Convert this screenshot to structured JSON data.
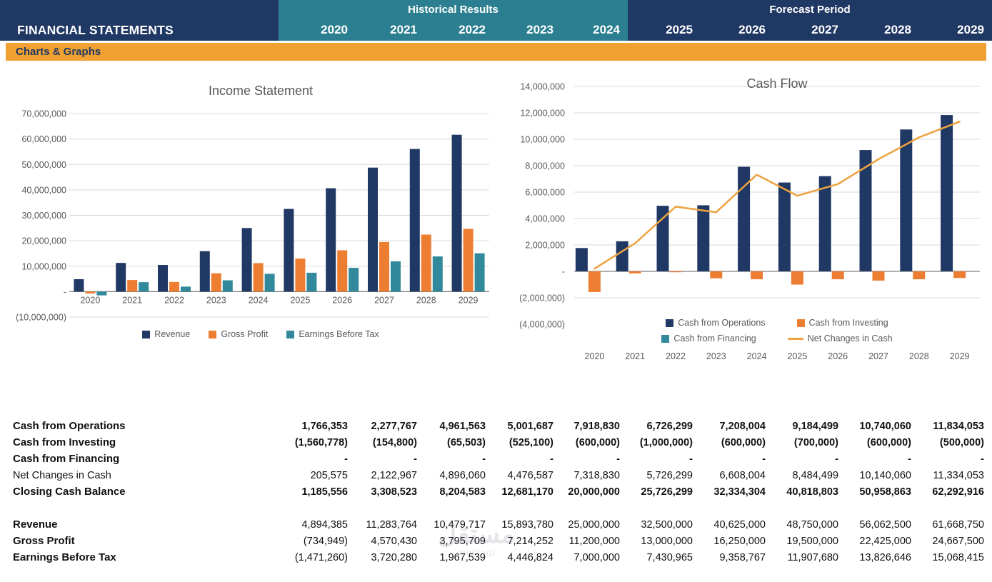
{
  "header": {
    "title": "FINANCIAL STATEMENTS",
    "historical_label": "Historical Results",
    "forecast_label": "Forecast Period",
    "historical_years": [
      "2020",
      "2021",
      "2022",
      "2023",
      "2024"
    ],
    "forecast_years": [
      "2025",
      "2026",
      "2027",
      "2028",
      "2029"
    ]
  },
  "section_bar": {
    "label": "Charts & Graphs"
  },
  "colors": {
    "navy": "#203864",
    "teal": "#2C7F90",
    "chart_teal": "#31899B",
    "orange": "#ED7D31",
    "band_orange": "#F0A132",
    "line_orange": "#EDA23F",
    "title_gray": "#595959",
    "grid_gray": "#D9D9D9",
    "axis_gray": "#808080"
  },
  "chart_data": [
    {
      "type": "bar",
      "title": "Income Statement",
      "categories": [
        "2020",
        "2021",
        "2022",
        "2023",
        "2024",
        "2025",
        "2026",
        "2027",
        "2028",
        "2029"
      ],
      "series": [
        {
          "name": "Revenue",
          "type": "bar",
          "color": "#203864",
          "values": [
            4894385,
            11283764,
            10479717,
            15893780,
            25000000,
            32500000,
            40625000,
            48750000,
            56062500,
            61668750
          ]
        },
        {
          "name": "Gross Profit",
          "type": "bar",
          "color": "#ED7D31",
          "values": [
            -734949,
            4570430,
            3795709,
            7214252,
            11200000,
            13000000,
            16250000,
            19500000,
            22425000,
            24667500
          ]
        },
        {
          "name": "Earnings Before Tax",
          "type": "bar",
          "color": "#31899B",
          "values": [
            -1471260,
            3720280,
            1967539,
            4446824,
            7000000,
            7430965,
            9358767,
            11907680,
            13826646,
            15068415
          ]
        }
      ],
      "ylim": [
        -10000000,
        70000000
      ],
      "ytick": 10000000,
      "grid": true,
      "legend_position": "bottom"
    },
    {
      "type": "bar+line",
      "title": "Cash Flow",
      "categories": [
        "2020",
        "2021",
        "2022",
        "2023",
        "2024",
        "2025",
        "2026",
        "2027",
        "2028",
        "2029"
      ],
      "series": [
        {
          "name": "Cash from Operations",
          "type": "bar",
          "color": "#203864",
          "values": [
            1766353,
            2277767,
            4961563,
            5001687,
            7918830,
            6726299,
            7208004,
            9184499,
            10740060,
            11834053
          ]
        },
        {
          "name": "Cash from Investing",
          "type": "bar",
          "color": "#ED7D31",
          "values": [
            -1560778,
            -154800,
            -65503,
            -525100,
            -600000,
            -1000000,
            -600000,
            -700000,
            -600000,
            -500000
          ]
        },
        {
          "name": "Cash from Financing",
          "type": "bar",
          "color": "#31899B",
          "values": [
            0,
            0,
            0,
            0,
            0,
            0,
            0,
            0,
            0,
            0
          ]
        },
        {
          "name": "Net Changes in Cash",
          "type": "line",
          "color": "#EDA23F",
          "values": [
            205575,
            2122967,
            4896060,
            4476587,
            7318830,
            5726299,
            6608004,
            8484499,
            10140060,
            11334053
          ]
        }
      ],
      "ylim": [
        -4000000,
        14000000
      ],
      "ytick": 2000000,
      "grid": true,
      "legend_position": "bottom"
    }
  ],
  "table": {
    "columns": [
      "2020",
      "2021",
      "2022",
      "2023",
      "2024",
      "2025",
      "2026",
      "2027",
      "2028",
      "2029"
    ],
    "sections": [
      {
        "rows": [
          {
            "label": "Cash from Operations",
            "bold_label": true,
            "bold_values": true,
            "values": [
              "1,766,353",
              "2,277,767",
              "4,961,563",
              "5,001,687",
              "7,918,830",
              "6,726,299",
              "7,208,004",
              "9,184,499",
              "10,740,060",
              "11,834,053"
            ]
          },
          {
            "label": "Cash from Investing",
            "bold_label": true,
            "bold_values": true,
            "values": [
              "(1,560,778)",
              "(154,800)",
              "(65,503)",
              "(525,100)",
              "(600,000)",
              "(1,000,000)",
              "(600,000)",
              "(700,000)",
              "(600,000)",
              "(500,000)"
            ]
          },
          {
            "label": "Cash from Financing",
            "bold_label": true,
            "bold_values": true,
            "values": [
              "-",
              "-",
              "-",
              "-",
              "-",
              "-",
              "-",
              "-",
              "-",
              "-"
            ]
          },
          {
            "label": "Net Changes in Cash",
            "bold_label": false,
            "bold_values": false,
            "values": [
              "205,575",
              "2,122,967",
              "4,896,060",
              "4,476,587",
              "7,318,830",
              "5,726,299",
              "6,608,004",
              "8,484,499",
              "10,140,060",
              "11,334,053"
            ]
          },
          {
            "label": "Closing Cash Balance",
            "bold_label": true,
            "bold_values": true,
            "values": [
              "1,185,556",
              "3,308,523",
              "8,204,583",
              "12,681,170",
              "20,000,000",
              "25,726,299",
              "32,334,304",
              "40,818,803",
              "50,958,863",
              "62,292,916"
            ]
          }
        ]
      },
      {
        "rows": [
          {
            "label": "Revenue",
            "bold_label": true,
            "bold_values": false,
            "values": [
              "4,894,385",
              "11,283,764",
              "10,479,717",
              "15,893,780",
              "25,000,000",
              "32,500,000",
              "40,625,000",
              "48,750,000",
              "56,062,500",
              "61,668,750"
            ]
          },
          {
            "label": "Gross Profit",
            "bold_label": true,
            "bold_values": false,
            "values": [
              "(734,949)",
              "4,570,430",
              "3,795,709",
              "7,214,252",
              "11,200,000",
              "13,000,000",
              "16,250,000",
              "19,500,000",
              "22,425,000",
              "24,667,500"
            ]
          },
          {
            "label": "Earnings Before Tax",
            "bold_label": true,
            "bold_values": false,
            "values": [
              "(1,471,260)",
              "3,720,280",
              "1,967,539",
              "4,446,824",
              "7,000,000",
              "7,430,965",
              "9,358,767",
              "11,907,680",
              "13,826,646",
              "15,068,415"
            ]
          }
        ]
      }
    ]
  },
  "watermark": {
    "text": "مستقل",
    "subtext": "mostaql"
  }
}
